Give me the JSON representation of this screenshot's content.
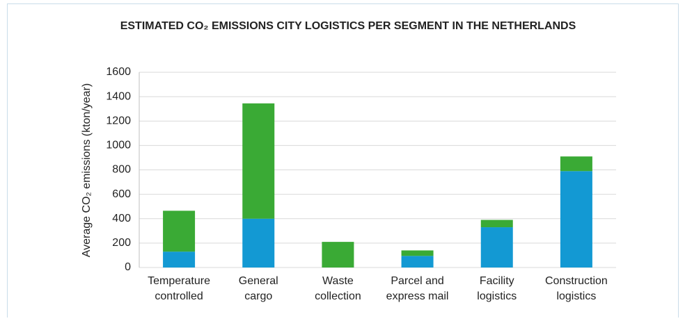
{
  "chart_data": {
    "type": "bar",
    "stacked": true,
    "title": "ESTIMATED CO₂ EMISSIONS CITY LOGISTICS PER SEGMENT IN THE NETHERLANDS",
    "ylabel": "Average CO₂ emissions (kton/year)",
    "categories": [
      "Temperature controlled",
      "General cargo",
      "Waste collection",
      "Parcel and express mail",
      "Facility logistics",
      "Construction logistics"
    ],
    "series": [
      {
        "color": "#1399d3",
        "values": [
          130,
          400,
          0,
          95,
          330,
          790
        ]
      },
      {
        "color": "#3aaa35",
        "values": [
          335,
          945,
          210,
          45,
          60,
          120
        ]
      }
    ],
    "ylim": [
      0,
      1600
    ],
    "yticks": [
      0,
      200,
      400,
      600,
      800,
      1000,
      1200,
      1400,
      1600
    ],
    "grid": true
  }
}
